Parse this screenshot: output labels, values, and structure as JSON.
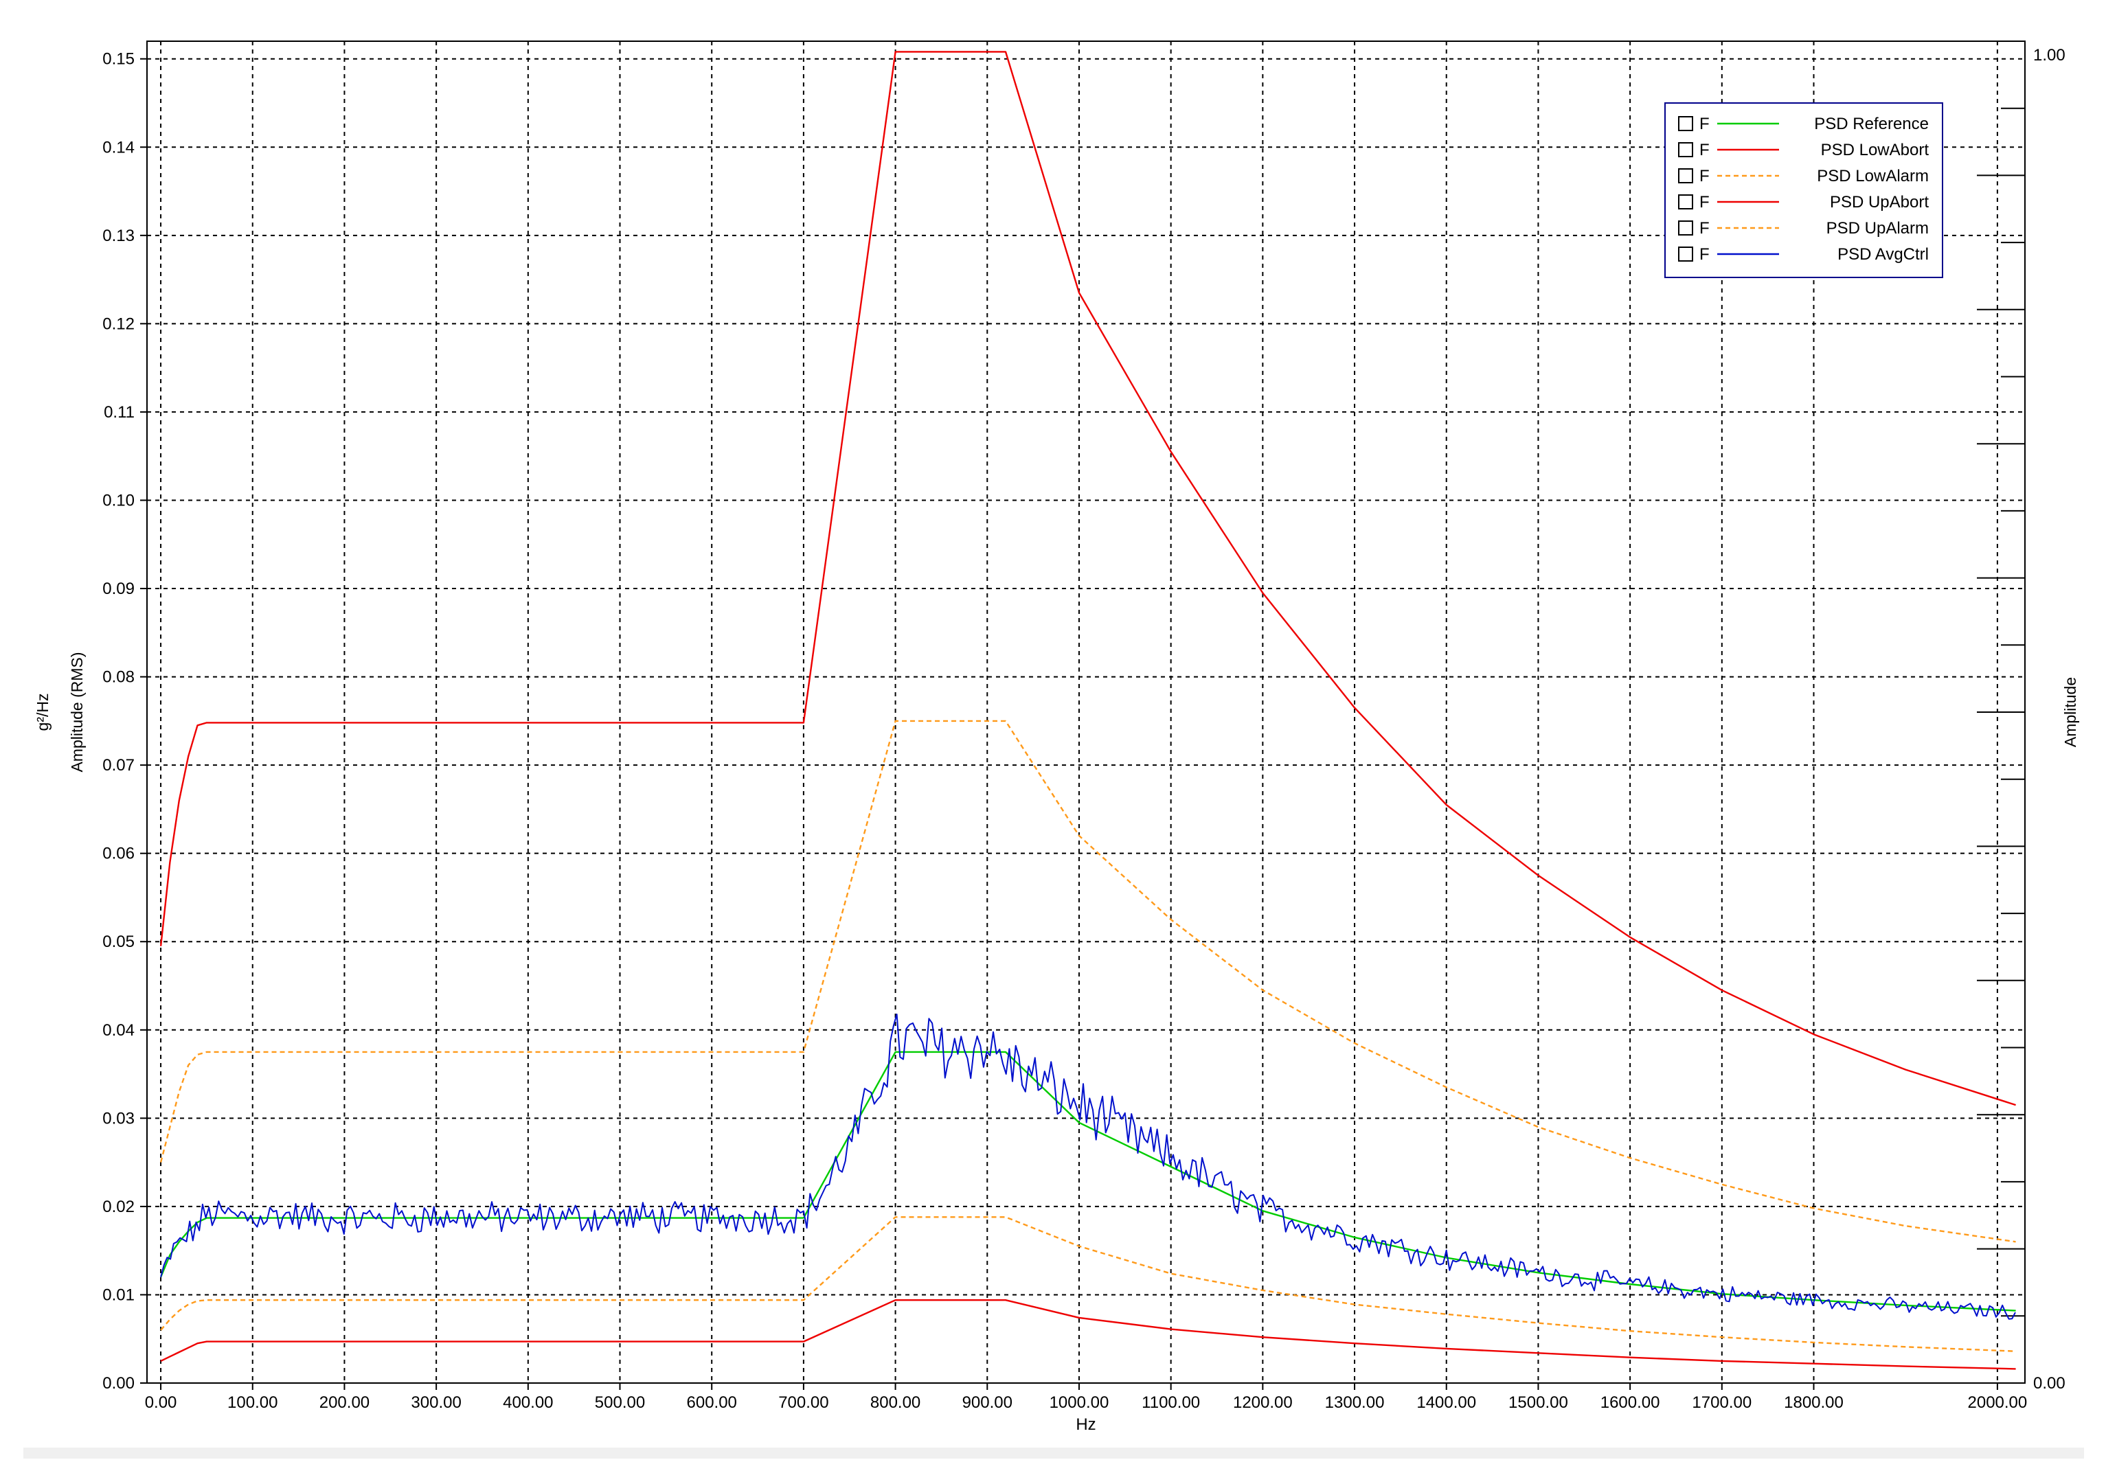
{
  "chart_data": {
    "type": "line",
    "xlabel": "Hz",
    "ylabel_left_line1": "g²/Hz",
    "ylabel_left_line2": "Amplitude (RMS)",
    "ylabel_right": "Amplitude",
    "xlim": [
      -15,
      2030
    ],
    "ylim": [
      0,
      0.152
    ],
    "x_ticks": [
      0,
      100,
      200,
      300,
      400,
      500,
      600,
      700,
      800,
      900,
      1000,
      1100,
      1200,
      1300,
      1400,
      1500,
      1600,
      1700,
      1800,
      2000
    ],
    "x_tick_labels": [
      "0.00",
      "100.00",
      "200.00",
      "300.00",
      "400.00",
      "500.00",
      "600.00",
      "700.00",
      "800.00",
      "900.00",
      "1000.00",
      "1100.00",
      "1200.00",
      "1300.00",
      "1400.00",
      "1500.00",
      "1600.00",
      "1700.00",
      "1800.00",
      "2000.00"
    ],
    "y_ticks": [
      0,
      0.01,
      0.02,
      0.03,
      0.04,
      0.05,
      0.06,
      0.07,
      0.08,
      0.09,
      0.1,
      0.11,
      0.12,
      0.13,
      0.14,
      0.15
    ],
    "y_tick_labels": [
      "0.00",
      "0.01",
      "0.02",
      "0.03",
      "0.04",
      "0.05",
      "0.06",
      "0.07",
      "0.08",
      "0.09",
      "0.10",
      "0.11",
      "0.12",
      "0.13",
      "0.14",
      "0.15"
    ],
    "right_axis_labels": [
      "1.00",
      "0.00"
    ],
    "grid": true,
    "legend_position": "top-right",
    "legend_checkbox_label": "F",
    "series": [
      {
        "name": "PSD Reference",
        "color": "#00cc00",
        "style": "solid",
        "x": [
          0,
          10,
          20,
          30,
          40,
          50,
          700,
          800,
          920,
          1000,
          1100,
          1200,
          1300,
          1400,
          1500,
          1600,
          1700,
          1800,
          1900,
          2020
        ],
        "y": [
          0.012,
          0.0145,
          0.016,
          0.0172,
          0.0182,
          0.0187,
          0.0187,
          0.0375,
          0.0375,
          0.0295,
          0.0245,
          0.0195,
          0.0165,
          0.0142,
          0.0125,
          0.0112,
          0.0101,
          0.0094,
          0.0088,
          0.0082
        ]
      },
      {
        "name": "PSD LowAbort",
        "color": "#ee0000",
        "style": "solid",
        "x": [
          0,
          10,
          20,
          30,
          40,
          50,
          700,
          800,
          920,
          1000,
          1100,
          1200,
          1300,
          1400,
          1500,
          1600,
          1700,
          1800,
          1900,
          2020
        ],
        "y": [
          0.0025,
          0.003,
          0.0035,
          0.004,
          0.0045,
          0.0047,
          0.0047,
          0.0094,
          0.0094,
          0.0074,
          0.0061,
          0.0052,
          0.0045,
          0.0039,
          0.0034,
          0.0029,
          0.0025,
          0.0022,
          0.0019,
          0.0016
        ]
      },
      {
        "name": "PSD LowAlarm",
        "color": "#ff9a1a",
        "style": "dashed",
        "x": [
          0,
          10,
          20,
          30,
          40,
          50,
          700,
          800,
          920,
          1000,
          1100,
          1200,
          1300,
          1400,
          1500,
          1600,
          1700,
          1800,
          1900,
          2020
        ],
        "y": [
          0.006,
          0.0072,
          0.0082,
          0.0089,
          0.0093,
          0.0094,
          0.0094,
          0.0188,
          0.0188,
          0.0155,
          0.0124,
          0.0105,
          0.0089,
          0.0078,
          0.0068,
          0.0059,
          0.0052,
          0.0046,
          0.0041,
          0.0036
        ]
      },
      {
        "name": "PSD UpAbort",
        "color": "#ee0000",
        "style": "solid",
        "x": [
          0,
          10,
          20,
          30,
          40,
          50,
          700,
          800,
          920,
          1000,
          1100,
          1200,
          1300,
          1400,
          1500,
          1600,
          1700,
          1800,
          1900,
          2020
        ],
        "y": [
          0.0495,
          0.059,
          0.066,
          0.071,
          0.0745,
          0.0748,
          0.0748,
          0.1508,
          0.1508,
          0.1235,
          0.1055,
          0.0895,
          0.0765,
          0.0655,
          0.0575,
          0.0505,
          0.0445,
          0.0395,
          0.0355,
          0.0315
        ]
      },
      {
        "name": "PSD UpAlarm",
        "color": "#ff9a1a",
        "style": "dashed",
        "x": [
          0,
          10,
          20,
          30,
          40,
          50,
          700,
          800,
          920,
          1000,
          1100,
          1200,
          1300,
          1400,
          1500,
          1600,
          1700,
          1800,
          1900,
          2020
        ],
        "y": [
          0.025,
          0.029,
          0.033,
          0.036,
          0.0372,
          0.0375,
          0.0375,
          0.075,
          0.075,
          0.062,
          0.0525,
          0.0445,
          0.0385,
          0.0335,
          0.029,
          0.0255,
          0.0225,
          0.0198,
          0.0178,
          0.016
        ]
      },
      {
        "name": "PSD AvgCtrl",
        "color": "#0010cc",
        "style": "solid",
        "noisy": true,
        "x": [
          0,
          10,
          20,
          30,
          40,
          50,
          100,
          130,
          200,
          300,
          400,
          500,
          600,
          700,
          720,
          750,
          780,
          800,
          850,
          900,
          920,
          950,
          1000,
          1100,
          1200,
          1300,
          1400,
          1500,
          1600,
          1700,
          1800,
          1900,
          2020
        ],
        "y": [
          0.0118,
          0.0145,
          0.0158,
          0.0168,
          0.0178,
          0.0192,
          0.0188,
          0.019,
          0.0186,
          0.0188,
          0.0187,
          0.0188,
          0.0187,
          0.0188,
          0.0215,
          0.0268,
          0.0335,
          0.039,
          0.038,
          0.038,
          0.0365,
          0.0345,
          0.0315,
          0.0255,
          0.0195,
          0.0165,
          0.0142,
          0.0125,
          0.0112,
          0.0101,
          0.0094,
          0.0087,
          0.008
        ]
      }
    ]
  }
}
